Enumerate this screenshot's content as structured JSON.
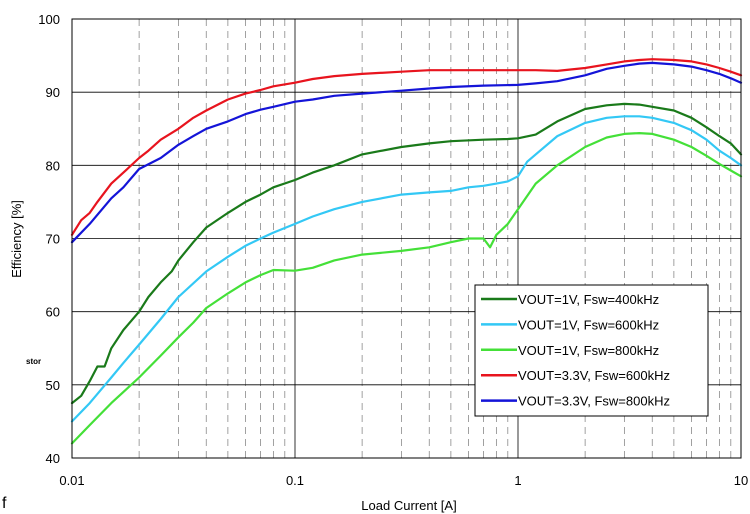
{
  "chart_data": {
    "type": "line",
    "xscale": "log",
    "xlim": [
      0.01,
      10
    ],
    "ylim": [
      40,
      100
    ],
    "xlabel": "Load Current [A]",
    "ylabel": "Efficiency [%]",
    "x_tick_labels": [
      "0.01",
      "0.1",
      "1",
      "10"
    ],
    "y_tick_labels": [
      "40",
      "50",
      "60",
      "70",
      "80",
      "90",
      "100"
    ],
    "grid": true,
    "legend_position": "bottom-right",
    "series": [
      {
        "name": "VOUT=1V, Fsw=400kHz",
        "color": "#1a7a1a",
        "x": [
          0.01,
          0.011,
          0.012,
          0.013,
          0.014,
          0.015,
          0.017,
          0.02,
          0.022,
          0.025,
          0.028,
          0.03,
          0.035,
          0.04,
          0.05,
          0.06,
          0.07,
          0.08,
          0.1,
          0.12,
          0.15,
          0.2,
          0.3,
          0.4,
          0.5,
          0.7,
          0.9,
          1.0,
          1.2,
          1.5,
          2.0,
          2.5,
          3.0,
          3.5,
          4.0,
          5.0,
          6.0,
          7.0,
          8.0,
          9.0,
          10.0
        ],
        "values": [
          47.5,
          48.5,
          50.5,
          52.5,
          52.5,
          55,
          57.5,
          60,
          62,
          64,
          65.5,
          67,
          69.5,
          71.5,
          73.5,
          75,
          76,
          77,
          78,
          79,
          80,
          81.5,
          82.5,
          83,
          83.3,
          83.5,
          83.6,
          83.7,
          84.2,
          86,
          87.7,
          88.2,
          88.4,
          88.3,
          88,
          87.5,
          86.5,
          85.2,
          84,
          83,
          81.5
        ]
      },
      {
        "name": "VOUT=1V, Fsw=600kHz",
        "color": "#33c8f5",
        "x": [
          0.01,
          0.012,
          0.015,
          0.017,
          0.02,
          0.025,
          0.03,
          0.04,
          0.05,
          0.06,
          0.07,
          0.08,
          0.1,
          0.12,
          0.15,
          0.2,
          0.3,
          0.4,
          0.5,
          0.6,
          0.7,
          0.8,
          0.9,
          1.0,
          1.1,
          1.2,
          1.5,
          2.0,
          2.5,
          3.0,
          3.5,
          4.0,
          5.0,
          6.0,
          7.0,
          8.0,
          9.0,
          10.0
        ],
        "values": [
          45,
          47.5,
          51,
          53,
          55.5,
          59,
          62,
          65.5,
          67.5,
          69,
          70,
          70.8,
          72,
          73,
          74,
          75,
          76,
          76.3,
          76.5,
          77,
          77.2,
          77.5,
          77.8,
          78.5,
          80.5,
          81.5,
          84,
          85.8,
          86.5,
          86.7,
          86.7,
          86.5,
          85.8,
          84.8,
          83.5,
          82,
          81,
          80
        ]
      },
      {
        "name": "VOUT=1V, Fsw=800kHz",
        "color": "#44e038",
        "x": [
          0.01,
          0.012,
          0.015,
          0.02,
          0.025,
          0.03,
          0.035,
          0.04,
          0.05,
          0.06,
          0.07,
          0.08,
          0.1,
          0.12,
          0.15,
          0.2,
          0.3,
          0.4,
          0.5,
          0.6,
          0.7,
          0.75,
          0.8,
          0.9,
          1.0,
          1.2,
          1.5,
          2.0,
          2.5,
          3.0,
          3.5,
          4.0,
          5.0,
          6.0,
          7.0,
          8.0,
          9.0,
          10.0
        ],
        "values": [
          42,
          44.5,
          47.5,
          51,
          54,
          56.5,
          58.5,
          60.5,
          62.5,
          64,
          65,
          65.7,
          65.6,
          66,
          67,
          67.8,
          68.3,
          68.8,
          69.5,
          70,
          70,
          68.8,
          70.5,
          72,
          74,
          77.5,
          80,
          82.5,
          83.8,
          84.3,
          84.4,
          84.3,
          83.5,
          82.5,
          81.3,
          80.2,
          79.3,
          78.5
        ]
      },
      {
        "name": "VOUT=3.3V, Fsw=600kHz",
        "color": "#e8141e",
        "x": [
          0.01,
          0.011,
          0.012,
          0.013,
          0.015,
          0.017,
          0.02,
          0.022,
          0.025,
          0.03,
          0.035,
          0.04,
          0.05,
          0.06,
          0.07,
          0.08,
          0.1,
          0.12,
          0.15,
          0.2,
          0.3,
          0.4,
          0.5,
          0.7,
          1.0,
          1.2,
          1.5,
          2.0,
          2.5,
          3.0,
          3.5,
          4.0,
          5.0,
          6.0,
          7.0,
          8.0,
          9.0,
          10.0
        ],
        "values": [
          70.5,
          72.5,
          73.5,
          75,
          77.5,
          79,
          81,
          82,
          83.5,
          85,
          86.5,
          87.5,
          89,
          89.8,
          90.3,
          90.8,
          91.3,
          91.8,
          92.2,
          92.5,
          92.8,
          93,
          93,
          93,
          93,
          93,
          92.9,
          93.3,
          93.8,
          94.2,
          94.4,
          94.5,
          94.4,
          94.2,
          93.8,
          93.3,
          92.8,
          92.3
        ]
      },
      {
        "name": "VOUT=3.3V, Fsw=800kHz",
        "color": "#1414d8",
        "x": [
          0.01,
          0.012,
          0.015,
          0.017,
          0.02,
          0.025,
          0.03,
          0.035,
          0.04,
          0.05,
          0.06,
          0.07,
          0.08,
          0.1,
          0.12,
          0.15,
          0.2,
          0.3,
          0.4,
          0.5,
          0.7,
          1.0,
          1.2,
          1.5,
          2.0,
          2.5,
          3.0,
          3.5,
          4.0,
          5.0,
          6.0,
          7.0,
          8.0,
          9.0,
          10.0
        ],
        "values": [
          69.5,
          72,
          75.5,
          77,
          79.5,
          81,
          82.8,
          84,
          85,
          86,
          87,
          87.6,
          88,
          88.7,
          89,
          89.5,
          89.8,
          90.2,
          90.5,
          90.7,
          90.9,
          91,
          91.2,
          91.5,
          92.3,
          93.2,
          93.6,
          93.9,
          94,
          93.8,
          93.5,
          93,
          92.5,
          91.9,
          91.3
        ]
      }
    ]
  },
  "stray_text": {
    "left_fragment": "stor",
    "corner_fragment": "f"
  }
}
